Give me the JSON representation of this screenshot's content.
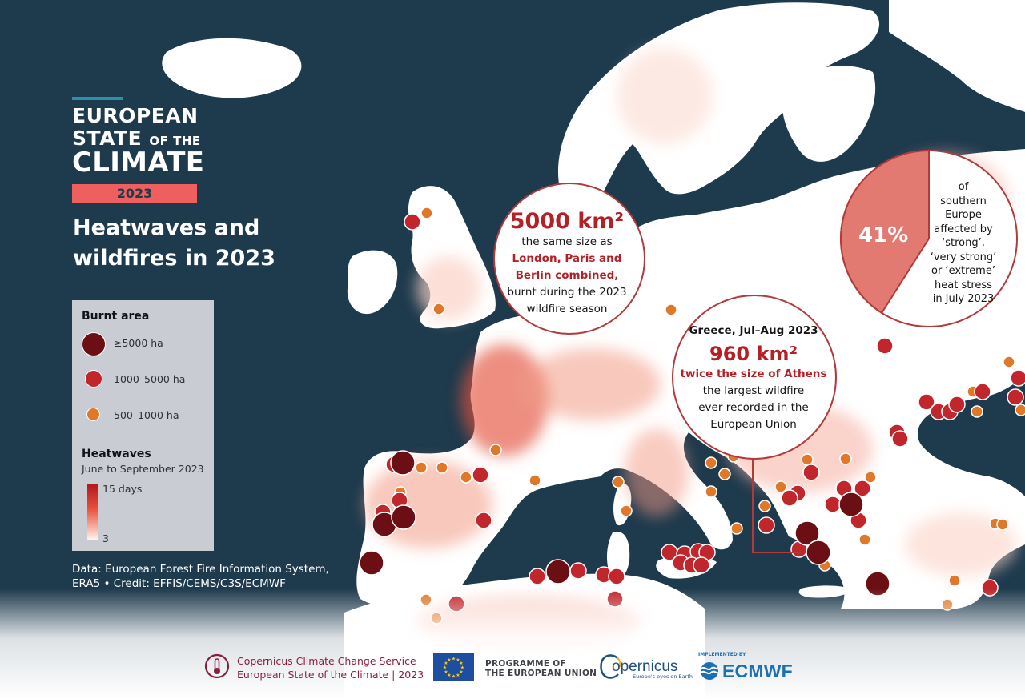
{
  "brand": {
    "line1": "EUROPEAN",
    "line2_a": "STATE",
    "line2_b": "OF THE",
    "line3": "CLIMATE",
    "year": "2023"
  },
  "headline": {
    "line1": "Heatwaves and",
    "line2": "wildfires in 2023"
  },
  "legend": {
    "burnt_title": "Burnt area",
    "classes": [
      {
        "label": "≥5000 ha",
        "color": "#6b0f14"
      },
      {
        "label": "1000–5000 ha",
        "color": "#c0262b"
      },
      {
        "label": "500–1000 ha",
        "color": "#e0782a"
      }
    ],
    "heat_title": "Heatwaves",
    "heat_subtitle": "June to September 2023",
    "heat_max": "15 days",
    "heat_min": "3",
    "ramp_colors": [
      "#b3141f",
      "#e8503f",
      "#f7b6a8",
      "#fff3ef"
    ]
  },
  "source": {
    "line1": "Data: European Forest Fire Information System,",
    "line2": "ERA5 • Credit: EFFIS/CEMS/C3S/ECMWF"
  },
  "callouts": {
    "season": {
      "big": "5000 km²",
      "l1": "the same size as",
      "l2": "London, Paris and",
      "l3": "Berlin combined,",
      "l4": "burnt during the 2023",
      "l5": "wildfire season"
    },
    "greece": {
      "head": "Greece, Jul–Aug 2023",
      "big": "960 km²",
      "sub": "twice the size of Athens",
      "l1": "the largest wildfire",
      "l2": "ever recorded in the",
      "l3": "European Union"
    },
    "heat_stress": {
      "pct": "41%",
      "fraction": 0.41,
      "l1": "of",
      "l2": "southern",
      "l3": "Europe",
      "l4": "affected by",
      "l5": "‘strong’,",
      "l6": "‘very strong’",
      "l7": "or ‘extreme’",
      "l8": "heat stress",
      "l9": "in July 2023"
    }
  },
  "footer": {
    "c3s_line1": "Copernicus Climate Change Service",
    "c3s_line2": "European State of the Climate | 2023",
    "prog_line1": "PROGRAMME OF",
    "prog_line2": "THE EUROPEAN UNION",
    "copernicus": "opernicus",
    "copernicus_c": "C",
    "copernicus_tag": "Europe's eyes on Earth",
    "ecmwf_impl": "IMPLEMENTED BY",
    "ecmwf": "ECMWF"
  },
  "colors": {
    "sea": "#1e3a4d",
    "land": "#ffffff",
    "heat_low": "#fbd3c8",
    "heat_high": "#e4533d",
    "accent_red": "#b42025",
    "fire_large": "#6b0f14",
    "fire_medium": "#c0262b",
    "fire_small": "#e0782a"
  }
}
